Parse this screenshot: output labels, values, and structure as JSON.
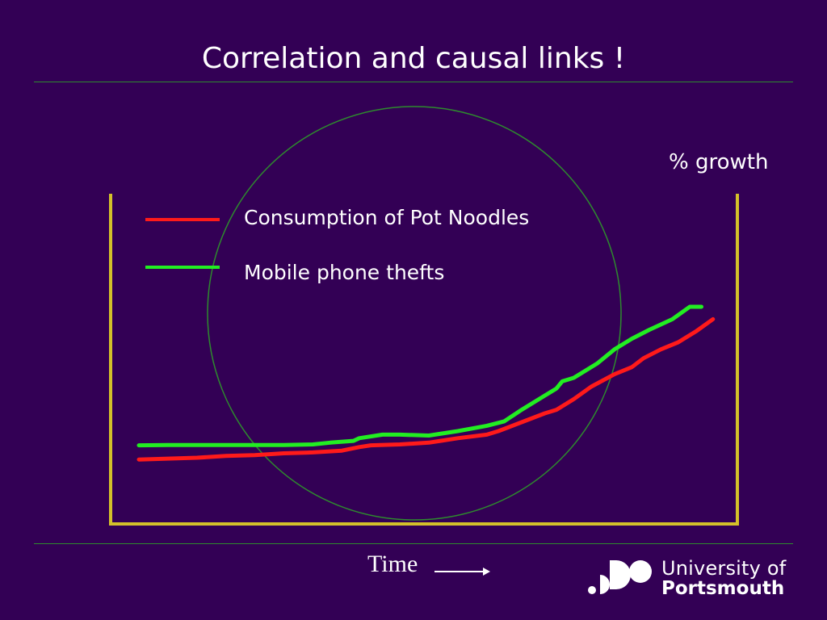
{
  "slide": {
    "title": "Correlation and causal links !",
    "x_axis_label": "Time",
    "x_axis_arrow": "right-arrow"
  },
  "chart_data": {
    "type": "line",
    "ylabel": "% growth",
    "xlabel": "Time",
    "axes": {
      "left_and_right_vertical_axes": true,
      "ticks": false,
      "grid": false
    },
    "legend_placement": "top-left",
    "annotation": "circle-highlight",
    "series": [
      {
        "name": "Consumption of Pot Noodles",
        "color": "#ff1a1a",
        "values": [
          [
            0,
            14
          ],
          [
            5,
            14.5
          ],
          [
            10,
            15
          ],
          [
            15,
            16
          ],
          [
            20,
            16.5
          ],
          [
            25,
            17.5
          ],
          [
            30,
            18
          ],
          [
            35,
            19
          ],
          [
            38,
            21
          ],
          [
            40,
            22
          ],
          [
            45,
            22.5
          ],
          [
            50,
            23.5
          ],
          [
            52,
            24.5
          ],
          [
            55,
            26
          ],
          [
            60,
            28
          ],
          [
            62,
            30
          ],
          [
            66,
            35
          ],
          [
            70,
            40
          ],
          [
            72,
            42
          ],
          [
            75,
            48
          ],
          [
            78,
            55
          ],
          [
            82,
            62
          ],
          [
            85,
            66
          ],
          [
            87,
            71
          ],
          [
            90,
            76
          ],
          [
            93,
            80
          ],
          [
            96,
            86
          ],
          [
            99,
            93
          ]
        ]
      },
      {
        "name": "Mobile phone thefts",
        "color": "#22ee22",
        "values": [
          [
            0,
            22
          ],
          [
            5,
            22.2
          ],
          [
            10,
            22.2
          ],
          [
            15,
            22.2
          ],
          [
            20,
            22.2
          ],
          [
            25,
            22.2
          ],
          [
            30,
            22.5
          ],
          [
            33,
            23.5
          ],
          [
            37,
            24.5
          ],
          [
            38,
            26
          ],
          [
            42,
            28
          ],
          [
            45,
            28
          ],
          [
            50,
            27.5
          ],
          [
            55,
            30
          ],
          [
            60,
            33
          ],
          [
            63,
            35.5
          ],
          [
            66,
            42
          ],
          [
            70,
            50
          ],
          [
            72,
            54
          ],
          [
            73,
            58
          ],
          [
            75,
            60
          ],
          [
            79,
            68
          ],
          [
            82,
            76
          ],
          [
            85,
            82
          ],
          [
            88,
            87
          ],
          [
            92,
            93
          ],
          [
            95,
            100
          ],
          [
            97,
            100
          ]
        ]
      }
    ],
    "circle_color": "#2e8b2e",
    "axis_color": "#d4c12a"
  },
  "branding": {
    "logo_line1": "University of",
    "logo_line2": "Portsmouth",
    "logo_icon": "portsmouth-dots-logo"
  }
}
